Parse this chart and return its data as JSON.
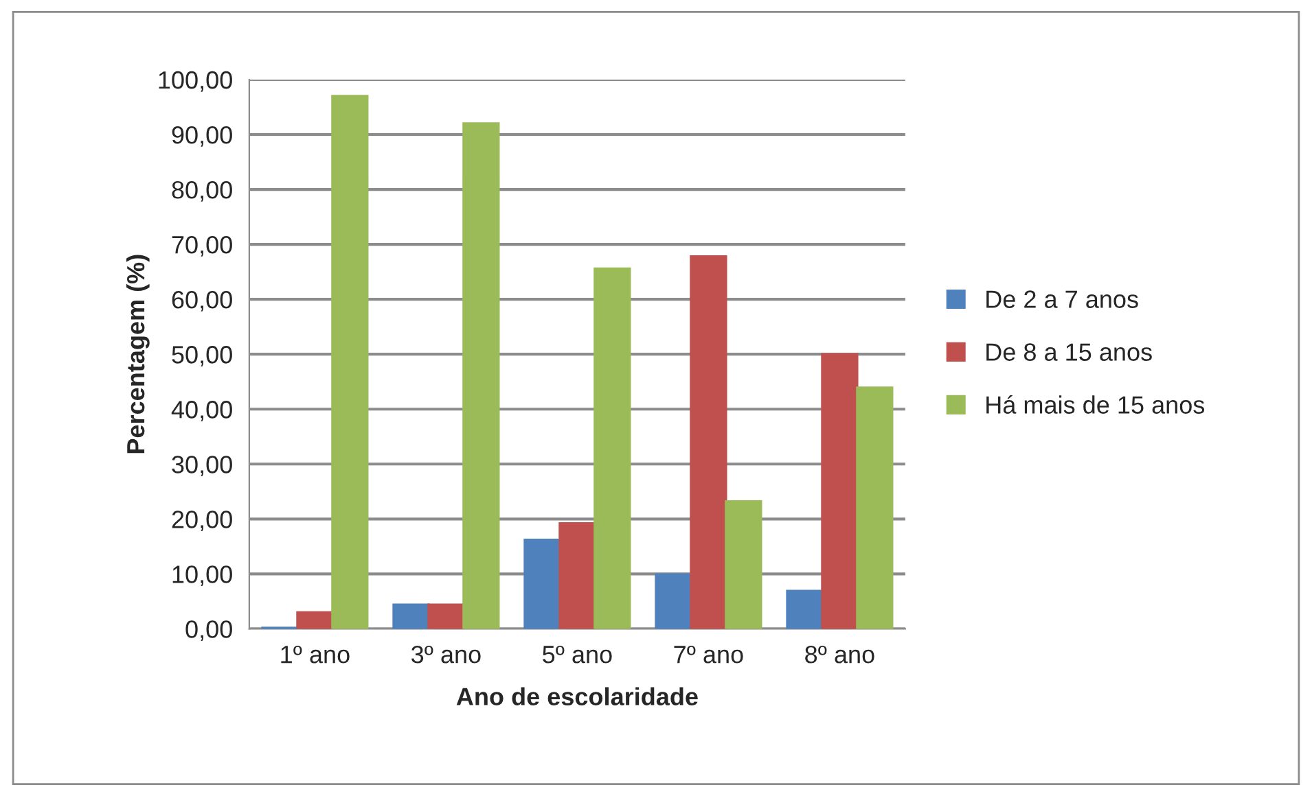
{
  "chart_data": {
    "type": "bar",
    "xlabel": "Ano de escolaridade",
    "ylabel": "Percentagem (%)",
    "categories": [
      "1º ano",
      "3º ano",
      "5º ano",
      "7º ano",
      "8º ano"
    ],
    "series": [
      {
        "name": "De 2 a 7 anos",
        "color": "#4f81bd",
        "values": [
          0.2,
          4.4,
          16.2,
          9.9,
          6.9
        ]
      },
      {
        "name": "De 8 a 15 anos",
        "color": "#c0504d",
        "values": [
          3.0,
          4.4,
          19.2,
          67.8,
          50.0
        ]
      },
      {
        "name": "Há mais de 15 anos",
        "color": "#9bbb59",
        "values": [
          97.0,
          92.0,
          65.6,
          23.2,
          43.9
        ]
      }
    ],
    "ylim": [
      0,
      100
    ],
    "yticks": [
      {
        "value": 0,
        "label": "0,00"
      },
      {
        "value": 10,
        "label": "10,00"
      },
      {
        "value": 20,
        "label": "20,00"
      },
      {
        "value": 30,
        "label": "30,00"
      },
      {
        "value": 40,
        "label": "40,00"
      },
      {
        "value": 50,
        "label": "50,00"
      },
      {
        "value": 60,
        "label": "60,00"
      },
      {
        "value": 70,
        "label": "70,00"
      },
      {
        "value": 80,
        "label": "80,00"
      },
      {
        "value": 90,
        "label": "90,00"
      },
      {
        "value": 100,
        "label": "100,00"
      }
    ],
    "grid": "y",
    "legend": "right"
  }
}
